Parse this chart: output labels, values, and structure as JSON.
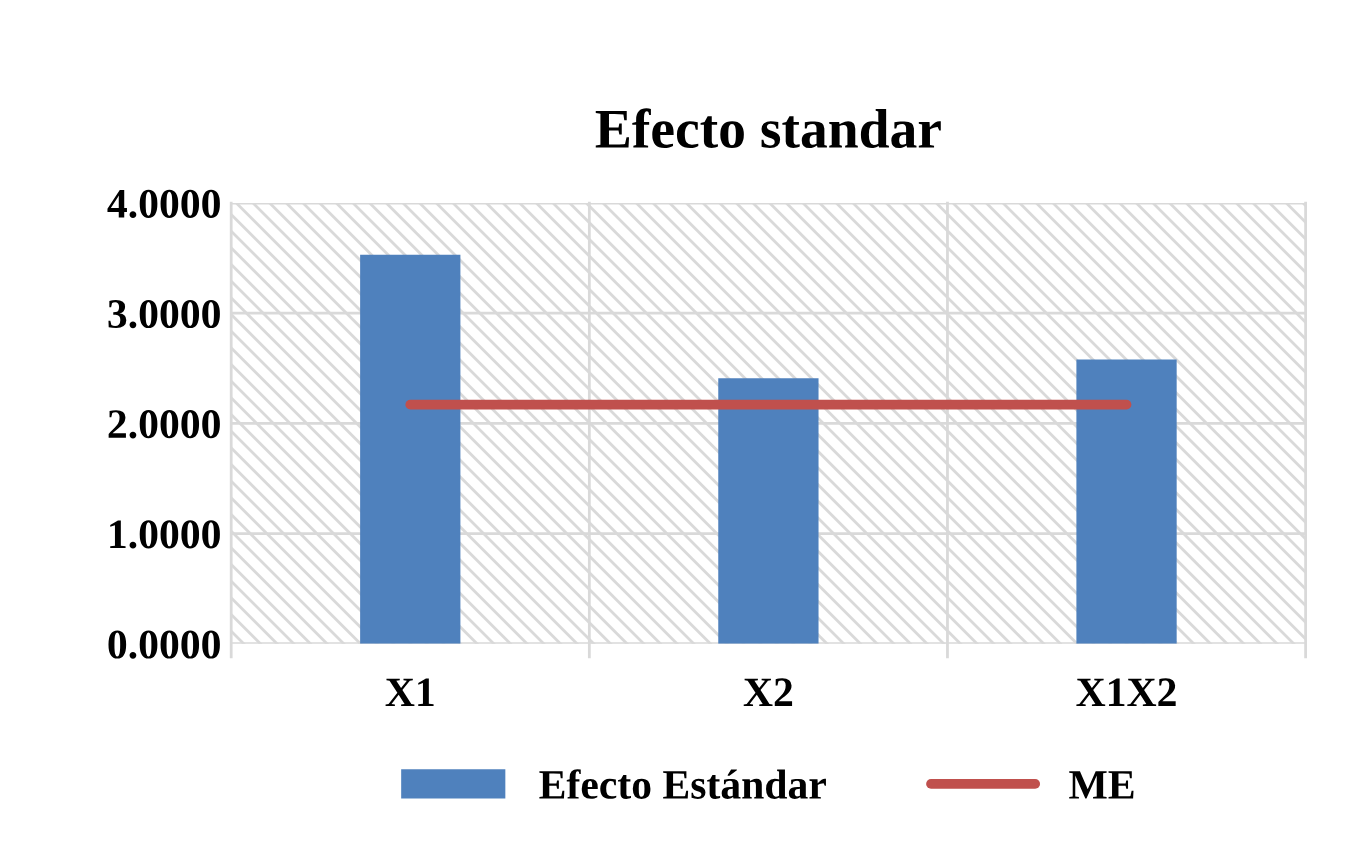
{
  "chart_data": {
    "type": "bar",
    "title": "Efecto standar",
    "categories": [
      "X1",
      "X2",
      "X1X2"
    ],
    "series": [
      {
        "name": "Efecto Estándar",
        "color": "#4f81bd",
        "values": [
          3.53,
          2.41,
          2.58
        ]
      },
      {
        "name": "ME",
        "type": "line",
        "color": "#c0504d",
        "values": [
          2.17,
          2.17,
          2.17
        ]
      }
    ],
    "ylim": [
      0,
      4
    ],
    "yticks": [
      {
        "value": 0,
        "label": "0.0000"
      },
      {
        "value": 1,
        "label": "1.0000"
      },
      {
        "value": 2,
        "label": "2.0000"
      },
      {
        "value": 3,
        "label": "3.0000"
      },
      {
        "value": 4,
        "label": "4.0000"
      }
    ],
    "grid": true,
    "legend": "bottom",
    "marker": "none",
    "line_style": "solid"
  }
}
